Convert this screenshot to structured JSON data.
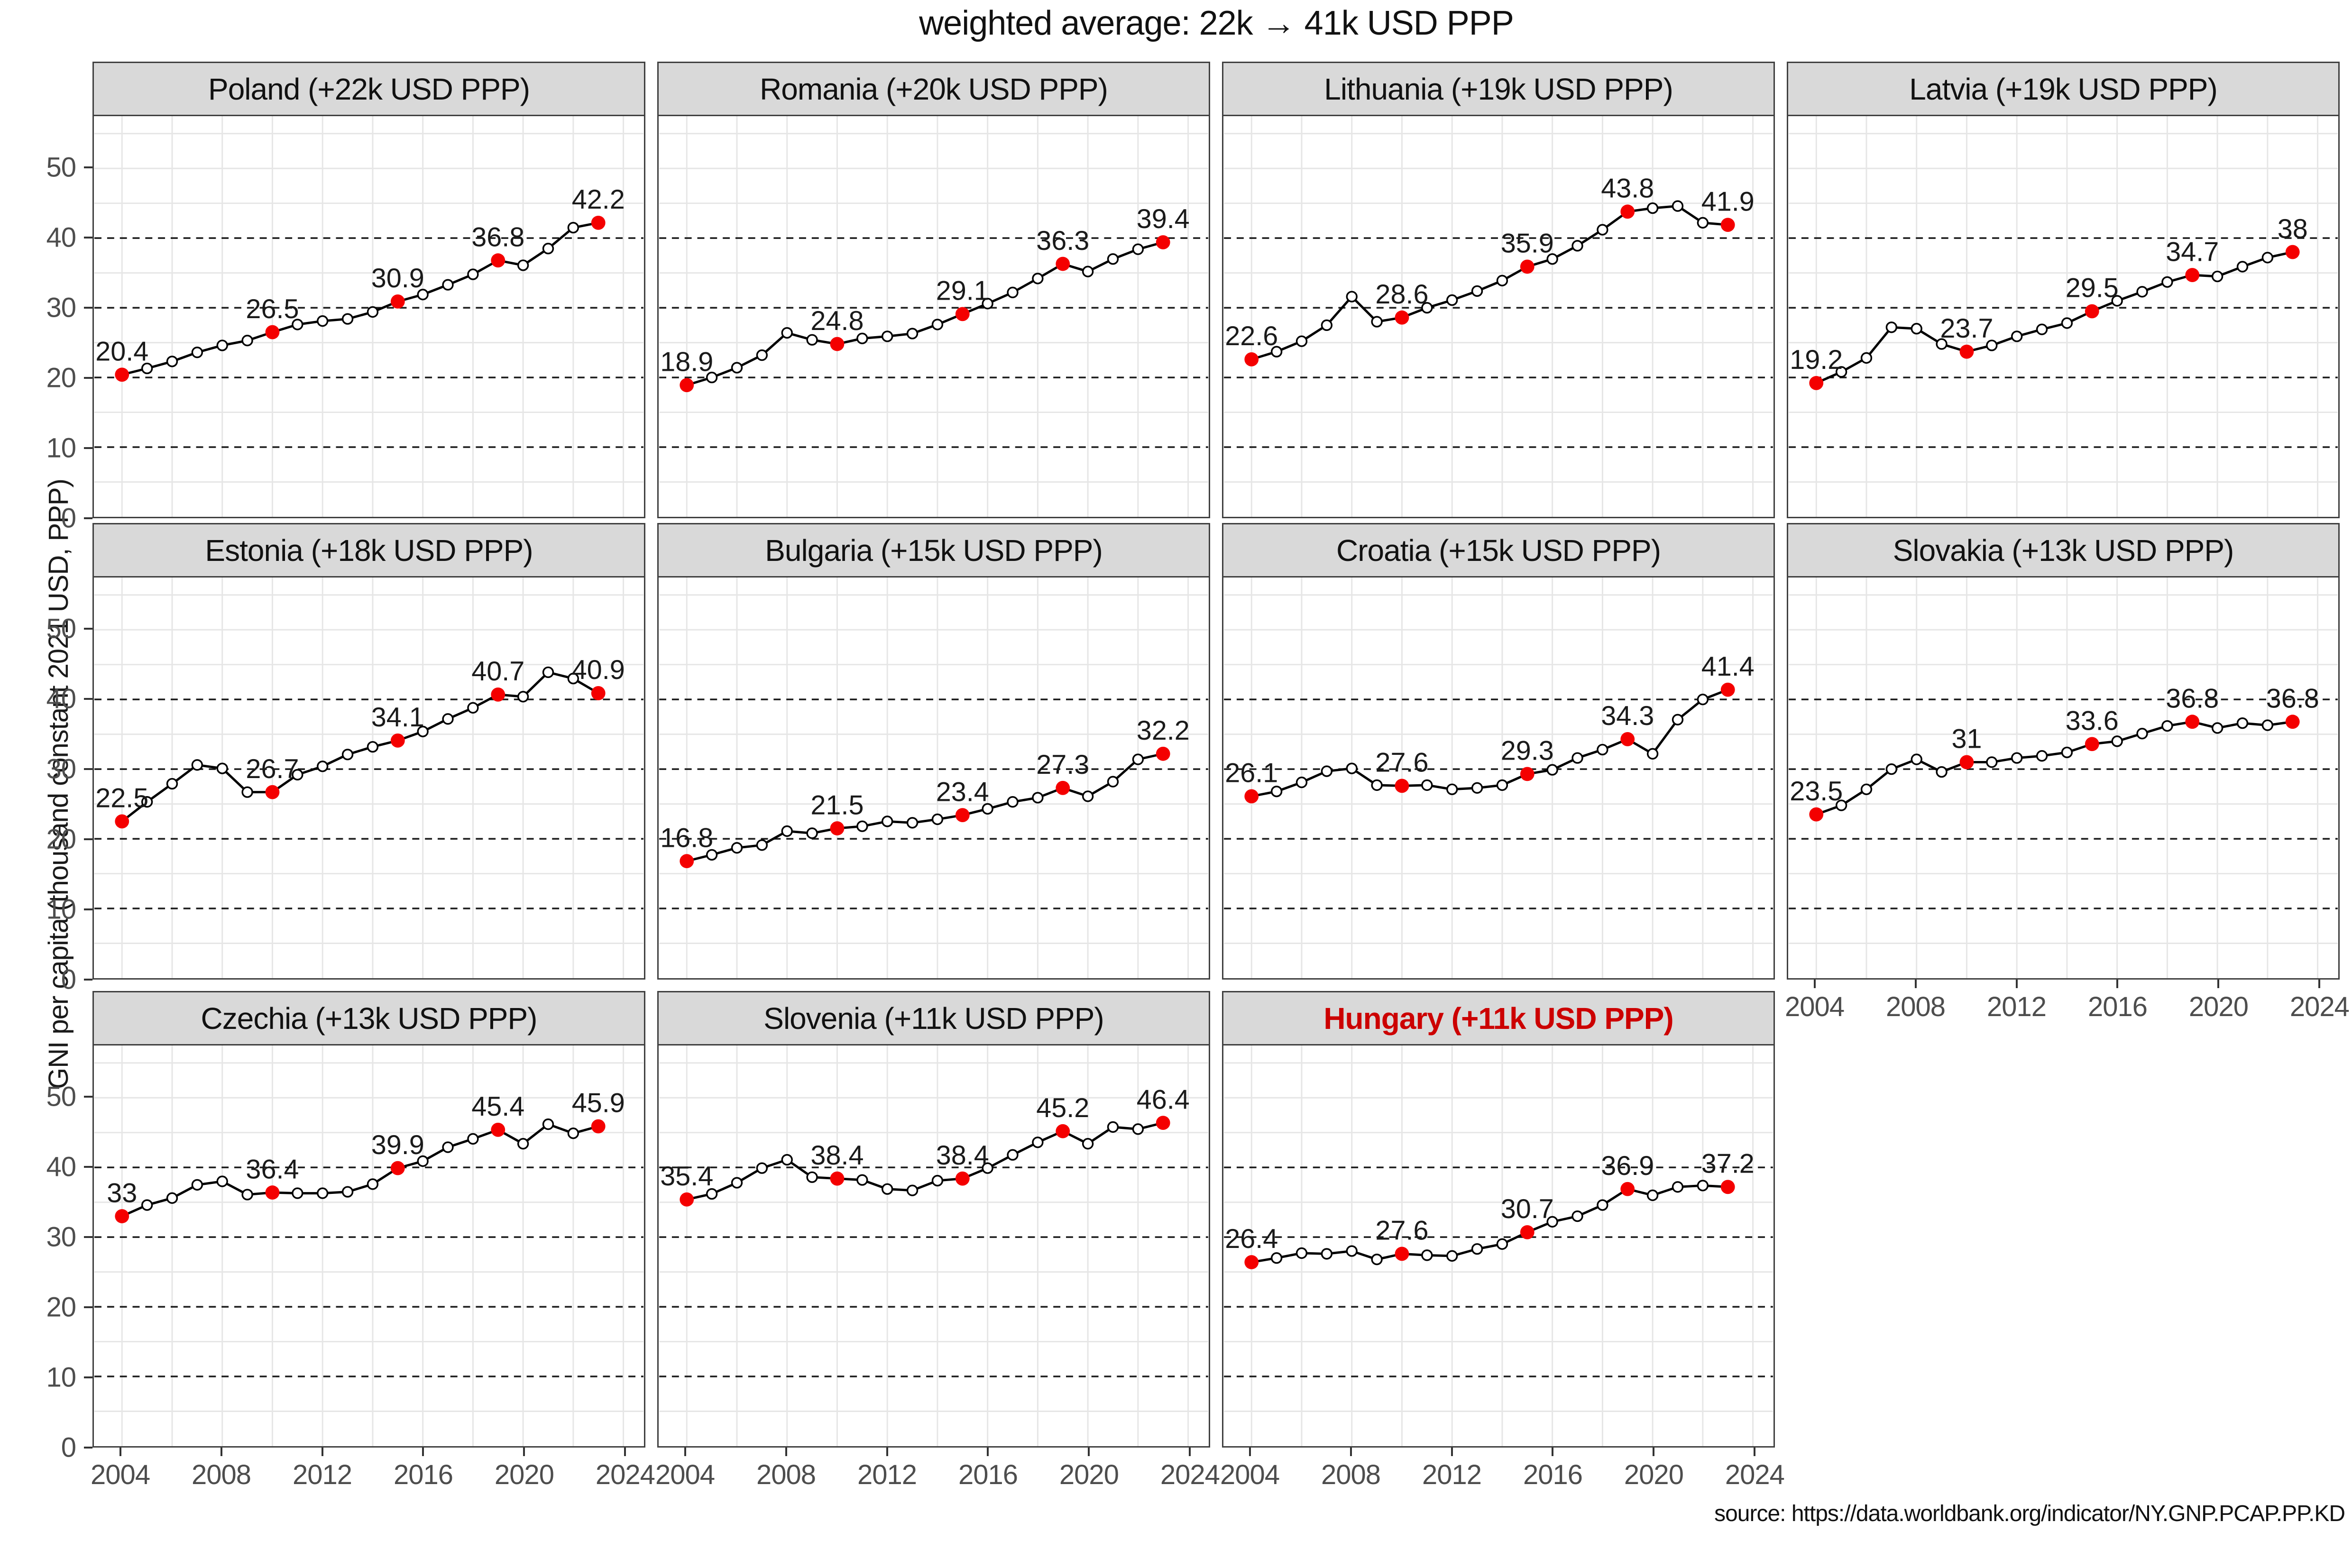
{
  "title": "weighted average: 22k → 41k USD PPP",
  "y_axis_title": "GNI per capita (thousand constant 2021 USD, PPP)",
  "source": "source: https://data.worldbank.org/indicator/NY.GNP.PCAP.PP.KD",
  "chart_data": {
    "type": "line",
    "small_multiples": true,
    "x": [
      2004,
      2005,
      2006,
      2007,
      2008,
      2009,
      2010,
      2011,
      2012,
      2013,
      2014,
      2015,
      2016,
      2017,
      2018,
      2019,
      2020,
      2021,
      2022,
      2023
    ],
    "x_ticks": [
      2004,
      2008,
      2012,
      2016,
      2020,
      2024
    ],
    "y_ticks": [
      0,
      10,
      20,
      30,
      40,
      50
    ],
    "xlim": [
      2002.9,
      2024.8
    ],
    "ylim": [
      0,
      57.5
    ],
    "dashed_gridlines_y": [
      10,
      20,
      30,
      40
    ],
    "light_gridlines_y": [
      5,
      15,
      25,
      35,
      45,
      50,
      55
    ],
    "vertical_gridlines_x": [
      2004,
      2006,
      2008,
      2010,
      2012,
      2014,
      2016,
      2018,
      2020,
      2022,
      2024
    ],
    "highlight_years": [
      2004,
      2010,
      2015,
      2019,
      2023
    ],
    "legend_position": "none",
    "grid_on": true,
    "colors": {
      "line": "#000000",
      "marker_fill": "#ffffff",
      "highlight_point": "#f40000",
      "strip_background": "#d9d9d9",
      "panel_border": "#404040",
      "light_grid": "#e6e6e6",
      "dashed_grid": "#1a1a1a",
      "tick_text": "#4d4d4d",
      "hungary_title": "#cc0000"
    },
    "panels": [
      {
        "title": "Poland (+22k USD PPP)",
        "highlight_title": false,
        "values": [
          20.4,
          21.3,
          22.3,
          23.6,
          24.6,
          25.3,
          26.5,
          27.6,
          28.1,
          28.4,
          29.4,
          30.9,
          31.9,
          33.3,
          34.8,
          36.8,
          36.1,
          38.5,
          41.5,
          42.2
        ],
        "point_labels": [
          {
            "year": 2004,
            "text": "20.4"
          },
          {
            "year": 2010,
            "text": "26.5"
          },
          {
            "year": 2015,
            "text": "30.9"
          },
          {
            "year": 2019,
            "text": "36.8"
          },
          {
            "year": 2023,
            "text": "42.2"
          }
        ]
      },
      {
        "title": "Romania (+20k USD PPP)",
        "highlight_title": false,
        "values": [
          18.9,
          20.0,
          21.4,
          23.2,
          26.4,
          25.4,
          24.8,
          25.6,
          25.9,
          26.3,
          27.6,
          29.1,
          30.6,
          32.2,
          34.2,
          36.3,
          35.2,
          37.0,
          38.4,
          39.4
        ],
        "point_labels": [
          {
            "year": 2004,
            "text": "18.9"
          },
          {
            "year": 2010,
            "text": "24.8"
          },
          {
            "year": 2015,
            "text": "29.1"
          },
          {
            "year": 2019,
            "text": "36.3"
          },
          {
            "year": 2023,
            "text": "39.4"
          }
        ]
      },
      {
        "title": "Lithuania (+19k USD PPP)",
        "highlight_title": false,
        "values": [
          22.6,
          23.7,
          25.2,
          27.5,
          31.6,
          28.0,
          28.6,
          30.0,
          31.1,
          32.4,
          33.9,
          35.9,
          37.0,
          38.9,
          41.2,
          43.8,
          44.3,
          44.6,
          42.2,
          41.9
        ],
        "point_labels": [
          {
            "year": 2004,
            "text": "22.6"
          },
          {
            "year": 2010,
            "text": "28.6"
          },
          {
            "year": 2015,
            "text": "35.9"
          },
          {
            "year": 2019,
            "text": "43.8"
          },
          {
            "year": 2023,
            "text": "41.9"
          }
        ]
      },
      {
        "title": "Latvia (+19k USD PPP)",
        "highlight_title": false,
        "values": [
          19.2,
          20.8,
          22.8,
          27.2,
          27.0,
          24.8,
          23.7,
          24.6,
          25.9,
          26.9,
          27.8,
          29.5,
          31.0,
          32.3,
          33.7,
          34.7,
          34.5,
          35.9,
          37.2,
          38.0
        ],
        "point_labels": [
          {
            "year": 2004,
            "text": "19.2"
          },
          {
            "year": 2010,
            "text": "23.7"
          },
          {
            "year": 2015,
            "text": "29.5"
          },
          {
            "year": 2019,
            "text": "34.7"
          },
          {
            "year": 2023,
            "text": "38"
          }
        ]
      },
      {
        "title": "Estonia (+18k USD PPP)",
        "highlight_title": false,
        "values": [
          22.5,
          25.3,
          27.9,
          30.6,
          30.1,
          26.7,
          26.7,
          29.2,
          30.4,
          32.1,
          33.2,
          34.1,
          35.4,
          37.2,
          38.8,
          40.7,
          40.4,
          43.9,
          43.0,
          40.9
        ],
        "point_labels": [
          {
            "year": 2004,
            "text": "22.5"
          },
          {
            "year": 2010,
            "text": "26.7"
          },
          {
            "year": 2015,
            "text": "34.1"
          },
          {
            "year": 2019,
            "text": "40.7"
          },
          {
            "year": 2023,
            "text": "40.9"
          }
        ]
      },
      {
        "title": "Bulgaria (+15k USD PPP)",
        "highlight_title": false,
        "values": [
          16.8,
          17.7,
          18.7,
          19.1,
          21.1,
          20.8,
          21.5,
          21.8,
          22.5,
          22.3,
          22.8,
          23.4,
          24.3,
          25.3,
          25.9,
          27.3,
          26.1,
          28.2,
          31.4,
          32.2
        ],
        "point_labels": [
          {
            "year": 2004,
            "text": "16.8"
          },
          {
            "year": 2010,
            "text": "21.5"
          },
          {
            "year": 2015,
            "text": "23.4"
          },
          {
            "year": 2019,
            "text": "27.3"
          },
          {
            "year": 2023,
            "text": "32.2"
          }
        ]
      },
      {
        "title": "Croatia (+15k USD PPP)",
        "highlight_title": false,
        "values": [
          26.1,
          26.8,
          28.1,
          29.7,
          30.1,
          27.7,
          27.6,
          27.7,
          27.1,
          27.3,
          27.7,
          29.3,
          29.9,
          31.6,
          32.8,
          34.3,
          32.2,
          37.1,
          40.0,
          41.4
        ],
        "point_labels": [
          {
            "year": 2004,
            "text": "26.1"
          },
          {
            "year": 2010,
            "text": "27.6"
          },
          {
            "year": 2015,
            "text": "29.3"
          },
          {
            "year": 2019,
            "text": "34.3"
          },
          {
            "year": 2023,
            "text": "41.4"
          }
        ]
      },
      {
        "title": "Slovakia (+13k USD PPP)",
        "highlight_title": false,
        "values": [
          23.5,
          24.8,
          27.1,
          30.0,
          31.4,
          29.6,
          31.0,
          31.0,
          31.6,
          31.9,
          32.4,
          33.6,
          34.0,
          35.1,
          36.2,
          36.8,
          35.9,
          36.6,
          36.3,
          36.8
        ],
        "point_labels": [
          {
            "year": 2004,
            "text": "23.5"
          },
          {
            "year": 2010,
            "text": "31"
          },
          {
            "year": 2015,
            "text": "33.6"
          },
          {
            "year": 2019,
            "text": "36.8"
          },
          {
            "year": 2023,
            "text": "36.8"
          }
        ]
      },
      {
        "title": "Czechia (+13k USD PPP)",
        "highlight_title": false,
        "values": [
          33.0,
          34.6,
          35.6,
          37.5,
          38.0,
          36.1,
          36.4,
          36.3,
          36.3,
          36.5,
          37.6,
          39.9,
          40.9,
          42.9,
          44.1,
          45.4,
          43.4,
          46.2,
          44.9,
          45.9
        ],
        "point_labels": [
          {
            "year": 2004,
            "text": "33"
          },
          {
            "year": 2010,
            "text": "36.4"
          },
          {
            "year": 2015,
            "text": "39.9"
          },
          {
            "year": 2019,
            "text": "45.4"
          },
          {
            "year": 2023,
            "text": "45.9"
          }
        ]
      },
      {
        "title": "Slovenia (+11k USD PPP)",
        "highlight_title": false,
        "values": [
          35.4,
          36.2,
          37.8,
          39.9,
          41.1,
          38.6,
          38.4,
          38.2,
          36.9,
          36.7,
          38.1,
          38.4,
          39.9,
          41.8,
          43.6,
          45.2,
          43.4,
          45.8,
          45.5,
          46.4
        ],
        "point_labels": [
          {
            "year": 2004,
            "text": "35.4"
          },
          {
            "year": 2010,
            "text": "38.4"
          },
          {
            "year": 2015,
            "text": "38.4"
          },
          {
            "year": 2019,
            "text": "45.2"
          },
          {
            "year": 2023,
            "text": "46.4"
          }
        ]
      },
      {
        "title": "Hungary (+11k USD PPP)",
        "highlight_title": true,
        "values": [
          26.4,
          27.0,
          27.7,
          27.6,
          28.0,
          26.8,
          27.6,
          27.4,
          27.3,
          28.3,
          29.0,
          30.7,
          32.2,
          33.0,
          34.6,
          36.9,
          36.0,
          37.2,
          37.4,
          37.2
        ],
        "point_labels": [
          {
            "year": 2004,
            "text": "26.4"
          },
          {
            "year": 2010,
            "text": "27.6"
          },
          {
            "year": 2015,
            "text": "30.7"
          },
          {
            "year": 2019,
            "text": "36.9"
          },
          {
            "year": 2023,
            "text": "37.2"
          }
        ]
      }
    ]
  }
}
